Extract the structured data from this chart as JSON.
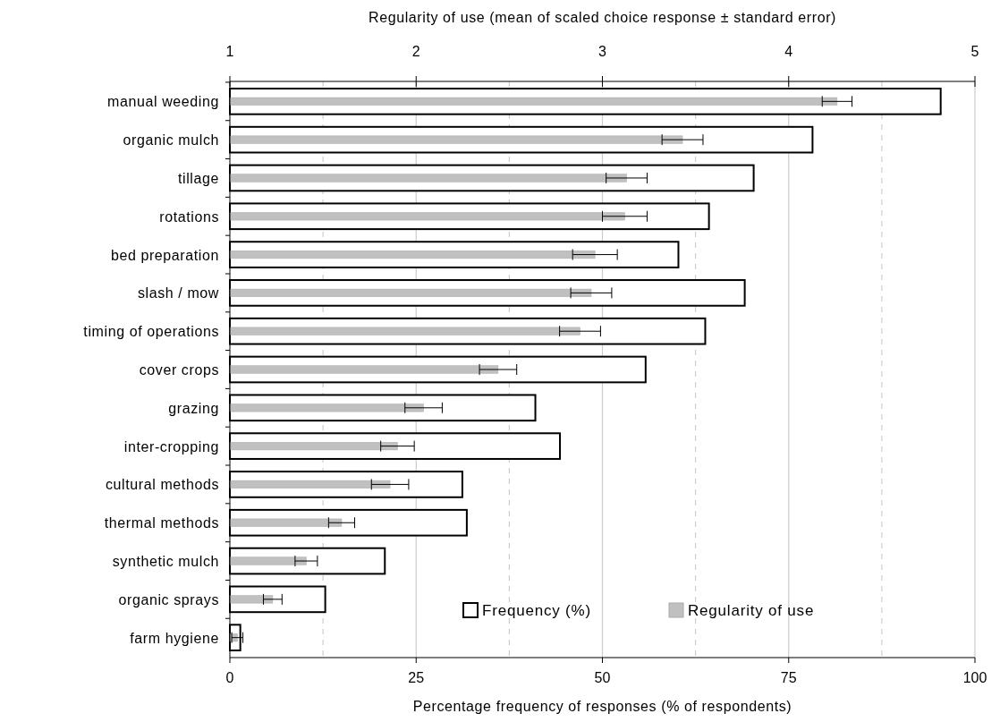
{
  "chart_data": {
    "type": "bar",
    "orientation": "horizontal",
    "categories": [
      "manual weeding",
      "organic mulch",
      "tillage",
      "rotations",
      "bed preparation",
      "slash / mow",
      "timing of operations",
      "cover crops",
      "grazing",
      "inter-cropping",
      "cultural methods",
      "thermal methods",
      "synthetic mulch",
      "organic sprays",
      "farm hygiene"
    ],
    "series": [
      {
        "name": "Frequency (%)",
        "color": "#ffffff",
        "values": [
          95.4,
          78.2,
          70.3,
          64.3,
          60.2,
          69.1,
          63.8,
          55.8,
          41.0,
          44.3,
          31.2,
          31.8,
          20.8,
          12.8,
          1.4
        ]
      },
      {
        "name": "Regularity of use",
        "color": "#c0c0c0",
        "axis": "x2",
        "values": [
          4.26,
          3.43,
          3.13,
          3.12,
          2.96,
          2.94,
          2.88,
          2.44,
          2.04,
          1.9,
          1.86,
          1.6,
          1.41,
          1.23,
          1.04
        ],
        "errors": [
          0.08,
          0.11,
          0.11,
          0.12,
          0.12,
          0.11,
          0.11,
          0.1,
          0.1,
          0.09,
          0.1,
          0.07,
          0.06,
          0.05,
          0.03
        ]
      }
    ],
    "xlabel": "Percentage frequency of responses (% of respondents)",
    "x2label": "Regularity of use (mean of scaled choice response ± standard error)",
    "xlim": [
      0,
      100
    ],
    "xticks": [
      0,
      {
        "value": 12.5,
        "label": null
      },
      25,
      {
        "value": 37.5,
        "label": null
      },
      50,
      {
        "value": 62.5,
        "label": null
      },
      75,
      {
        "value": 87.5,
        "label": null
      },
      100
    ],
    "x2lim": [
      1,
      5
    ],
    "x2ticks": [
      1,
      2,
      3,
      4,
      5
    ],
    "grid": "x",
    "legend": "bottom right"
  }
}
